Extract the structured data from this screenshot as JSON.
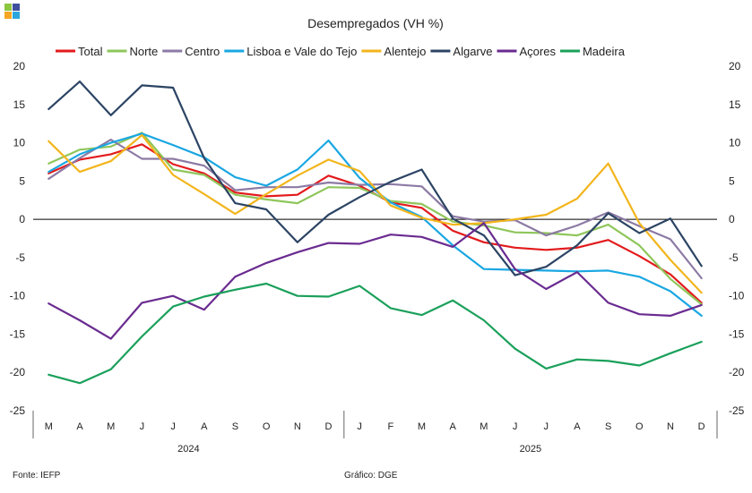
{
  "chart_data": {
    "type": "line",
    "title": "Desempregados (VH %)",
    "ylim": [
      -25,
      20
    ],
    "yticks": [
      20,
      15,
      10,
      5,
      0,
      -5,
      -10,
      -15,
      -20,
      -25
    ],
    "categories": [
      "M",
      "A",
      "M",
      "J",
      "J",
      "A",
      "S",
      "O",
      "N",
      "D",
      "J",
      "F",
      "M",
      "A",
      "M",
      "J",
      "J",
      "A",
      "S",
      "O",
      "N",
      "D"
    ],
    "year_groups": [
      {
        "label": "2024",
        "start": 0,
        "end": 9
      },
      {
        "label": "2025",
        "start": 10,
        "end": 21
      }
    ],
    "grid": false,
    "legend_position": "top",
    "series": [
      {
        "name": "Total",
        "color": "#e31a1c",
        "values": [
          6.0,
          7.8,
          8.5,
          9.8,
          7.2,
          6.0,
          3.5,
          3.0,
          3.2,
          5.7,
          4.4,
          2.2,
          1.5,
          -1.5,
          -3.0,
          -3.7,
          -4.0,
          -3.7,
          -2.7,
          -4.8,
          -7.2,
          -10.9
        ]
      },
      {
        "name": "Norte",
        "color": "#8fc65b",
        "values": [
          7.3,
          9.1,
          9.5,
          11.3,
          6.5,
          5.8,
          3.2,
          2.6,
          2.1,
          4.2,
          4.1,
          2.4,
          2.0,
          -0.3,
          -0.8,
          -1.7,
          -1.8,
          -2.1,
          -0.7,
          -3.4,
          -7.8,
          -11.1
        ]
      },
      {
        "name": "Centro",
        "color": "#8c7aa4",
        "values": [
          5.3,
          8.0,
          10.4,
          7.9,
          7.9,
          7.0,
          3.8,
          4.2,
          4.2,
          4.8,
          4.5,
          4.6,
          4.3,
          0.4,
          -0.3,
          -0.1,
          -2.1,
          -0.8,
          0.9,
          -0.9,
          -2.6,
          -7.7
        ]
      },
      {
        "name": "Lisboa e Vale do Tejo",
        "color": "#1aa7e2",
        "values": [
          6.2,
          8.5,
          10.0,
          11.2,
          9.7,
          8.1,
          5.5,
          4.4,
          6.5,
          10.3,
          5.4,
          2.2,
          0.3,
          -3.4,
          -6.5,
          -6.6,
          -6.7,
          -6.8,
          -6.7,
          -7.5,
          -9.4,
          -12.6
        ]
      },
      {
        "name": "Alentejo",
        "color": "#f2b51c",
        "values": [
          10.2,
          6.2,
          7.6,
          11.0,
          5.8,
          3.3,
          0.7,
          3.3,
          5.7,
          7.8,
          6.3,
          1.8,
          0.2,
          -0.7,
          -0.5,
          0.0,
          0.6,
          2.7,
          7.3,
          -0.5,
          -5.3,
          -9.6
        ]
      },
      {
        "name": "Algarve",
        "color": "#2c4464",
        "values": [
          14.4,
          18.0,
          13.6,
          17.5,
          17.2,
          8.0,
          2.1,
          1.3,
          -3.0,
          0.6,
          2.9,
          4.9,
          6.5,
          0.1,
          -2.1,
          -7.3,
          -6.2,
          -3.4,
          0.8,
          -1.8,
          0.1,
          -6.1
        ]
      },
      {
        "name": "Açores",
        "color": "#6a2b90",
        "values": [
          -11.0,
          -13.2,
          -15.6,
          -10.9,
          -10.0,
          -11.8,
          -7.5,
          -5.7,
          -4.3,
          -3.1,
          -3.2,
          -2.0,
          -2.3,
          -3.6,
          -0.5,
          -6.5,
          -9.1,
          -6.9,
          -10.9,
          -12.4,
          -12.6,
          -11.2
        ]
      },
      {
        "name": "Madeira",
        "color": "#1aa05a",
        "values": [
          -20.3,
          -21.4,
          -19.6,
          -15.3,
          -11.4,
          -10.1,
          -9.2,
          -8.4,
          -10.0,
          -10.1,
          -8.7,
          -11.6,
          -12.5,
          -10.6,
          -13.2,
          -16.9,
          -19.5,
          -18.3,
          -18.5,
          -19.1,
          -17.5,
          -16.0
        ]
      }
    ]
  },
  "footer": {
    "source": "Fonte: IEFP",
    "credit": "Gráfico: DGE"
  },
  "logo_colors": [
    "#8dc63f",
    "#3f4fa0",
    "#f6a623",
    "#2aa6dd"
  ]
}
